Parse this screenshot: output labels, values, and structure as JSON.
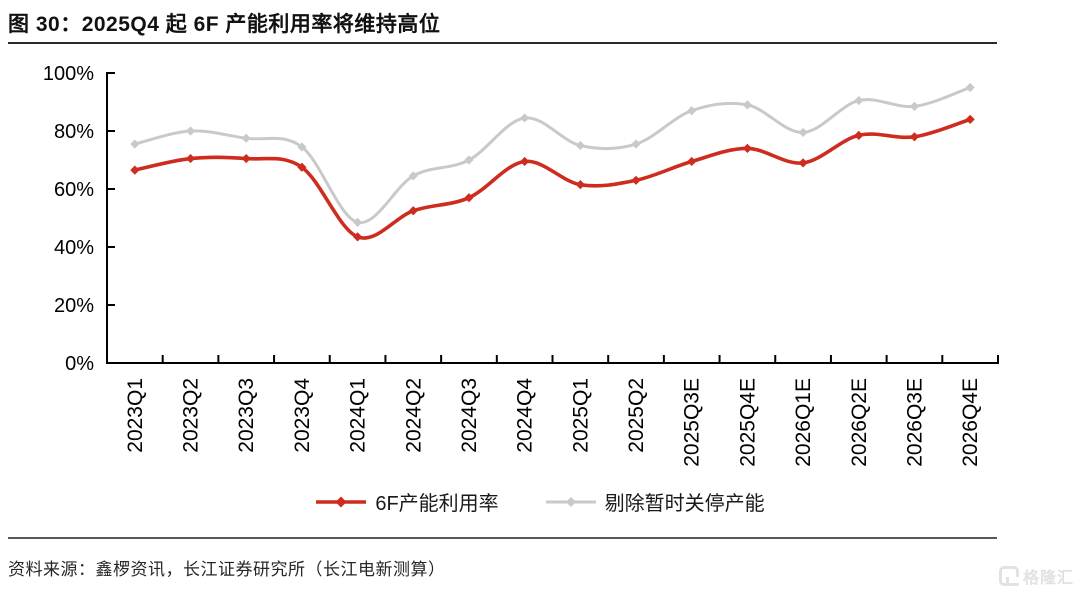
{
  "figure": {
    "title": "图 30：2025Q4 起 6F 产能利用率将维持高位",
    "source": "资料来源：鑫椤资讯，长江证券研究所（长江电新测算）",
    "watermark": "格隆汇"
  },
  "chart_data": {
    "type": "line",
    "title": "2025Q4 起 6F 产能利用率将维持高位",
    "categories": [
      "2023Q1",
      "2023Q2",
      "2023Q3",
      "2023Q4",
      "2024Q1",
      "2024Q2",
      "2024Q3",
      "2024Q4",
      "2025Q1",
      "2025Q2",
      "2025Q3E",
      "2025Q4E",
      "2026Q1E",
      "2026Q2E",
      "2026Q3E",
      "2026Q4E"
    ],
    "series": [
      {
        "name": "6F产能利用率",
        "color": "#cd2c1e",
        "line_width": 3.6,
        "values": [
          66.5,
          70.5,
          70.5,
          67.5,
          43.5,
          52.5,
          57,
          69.5,
          61.5,
          63,
          69.5,
          74,
          69,
          78.5,
          78,
          84
        ]
      },
      {
        "name": "剔除暂时关停产能",
        "color": "#c9c9c9",
        "line_width": 3,
        "values": [
          75.5,
          80,
          77.5,
          74.5,
          48.5,
          64.5,
          70,
          84.5,
          75,
          75.5,
          87,
          89,
          79.5,
          90.5,
          88.5,
          95
        ]
      }
    ],
    "xlabel": "",
    "ylabel": "",
    "ylim": [
      0,
      100
    ],
    "yticks": [
      {
        "value": 0,
        "label": "0%"
      },
      {
        "value": 20,
        "label": "20%"
      },
      {
        "value": 40,
        "label": "40%"
      },
      {
        "value": 60,
        "label": "60%"
      },
      {
        "value": 80,
        "label": "80%"
      },
      {
        "value": 100,
        "label": "100%"
      }
    ],
    "grid": false,
    "line_style": "smooth",
    "marker": "diamond",
    "legend_position": "bottom",
    "axis_color": "#000000"
  }
}
